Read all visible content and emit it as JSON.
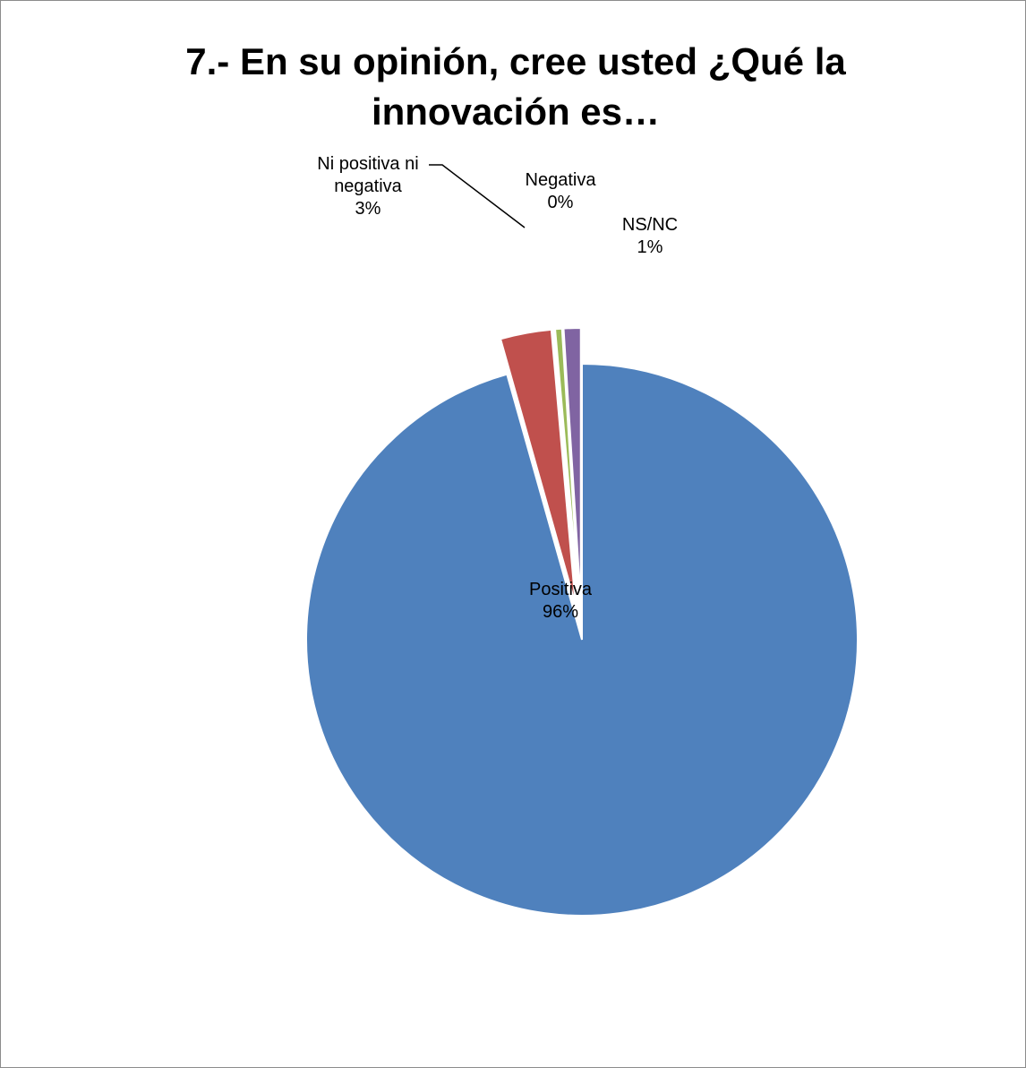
{
  "chart_data": {
    "type": "pie",
    "title": "7.- En su opinión, cree usted ¿Qué la innovación es…",
    "slices": [
      {
        "name": "Positiva",
        "value": 96,
        "label_value": "96%",
        "color": "#4F81BD",
        "exploded": false
      },
      {
        "name": "Ni positiva ni negativa",
        "value": 3,
        "label_value": "3%",
        "color": "#C0504D",
        "exploded": true
      },
      {
        "name": "Negativa",
        "value": 0.4,
        "label_value": "0%",
        "color": "#9BBB59",
        "exploded": true
      },
      {
        "name": "NS/NC",
        "value": 1,
        "label_value": "1%",
        "color": "#8064A2",
        "exploded": true
      }
    ],
    "label_lines": {
      "positiva": [
        "Positiva",
        "96%"
      ],
      "ni_positiva": [
        "Ni positiva ni",
        "negativa",
        "3%"
      ],
      "negativa": [
        "Negativa",
        "0%"
      ],
      "nsnc": [
        "NS/NC",
        "1%"
      ]
    },
    "legend": "none"
  }
}
